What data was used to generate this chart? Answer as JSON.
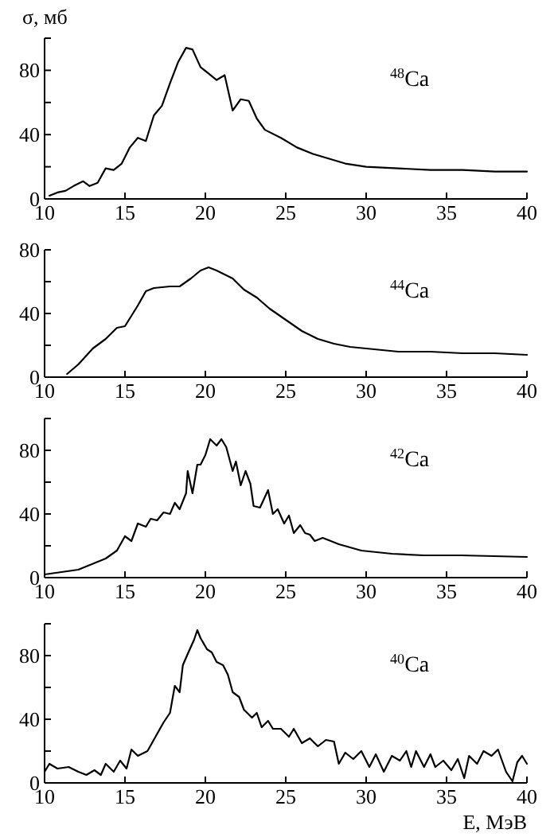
{
  "chart_data": [
    {
      "type": "line",
      "ylabel": "σ, мб",
      "annotations": [
        "$^{48}$Ca"
      ],
      "color": "#000000",
      "xlim": [
        10,
        40
      ],
      "xticks": [
        10,
        15,
        20,
        25,
        30,
        35,
        40
      ],
      "ylim": [
        0,
        100
      ],
      "yticks": [
        0,
        {
          "value": 20,
          "label": null
        },
        40,
        {
          "value": 60,
          "label": null
        },
        80,
        {
          "value": 100,
          "label": null
        }
      ],
      "x": [
        10.3,
        10.8,
        11.3,
        11.8,
        12.4,
        12.8,
        13.3,
        13.8,
        14.3,
        14.8,
        15.3,
        15.8,
        16.3,
        16.8,
        17.3,
        17.8,
        18.3,
        18.8,
        19.2,
        19.7,
        20.2,
        20.7,
        21.2,
        21.7,
        22.2,
        22.7,
        23.2,
        23.7,
        24.7,
        25.7,
        26.7,
        27.7,
        28.7,
        30,
        32,
        34,
        36,
        38,
        40
      ],
      "values": [
        2,
        4,
        5,
        8,
        11,
        8,
        10,
        19,
        18,
        22,
        32,
        38,
        36,
        52,
        58,
        72,
        85,
        94,
        93,
        82,
        78,
        74,
        77,
        55,
        62,
        61,
        50,
        43,
        38,
        32,
        28,
        25,
        22,
        20,
        19,
        18,
        18,
        17,
        17
      ]
    },
    {
      "type": "line",
      "annotations": [
        "$^{44}$Ca"
      ],
      "color": "#000000",
      "xlim": [
        10,
        40
      ],
      "xticks": [
        10,
        15,
        20,
        25,
        30,
        35,
        40
      ],
      "ylim": [
        0,
        80
      ],
      "yticks": [
        0,
        {
          "value": 20,
          "label": null
        },
        40,
        {
          "value": 60,
          "label": null
        },
        80
      ],
      "x": [
        11.4,
        12.1,
        13,
        13.8,
        14.5,
        15,
        15.8,
        16.3,
        16.8,
        17.8,
        18.4,
        19.1,
        19.7,
        20.2,
        20.7,
        21.7,
        22.4,
        23.2,
        24,
        25,
        26,
        27,
        28,
        29,
        30,
        32,
        34,
        36,
        38,
        40
      ],
      "values": [
        2,
        8,
        18,
        24,
        31,
        32,
        45,
        54,
        56,
        57,
        57,
        62,
        67,
        69,
        67,
        62,
        55,
        50,
        43,
        36,
        29,
        24,
        21,
        19,
        18,
        16,
        16,
        15,
        15,
        14
      ]
    },
    {
      "type": "line",
      "annotations": [
        "$^{42}$Ca"
      ],
      "color": "#000000",
      "xlim": [
        10,
        40
      ],
      "xticks": [
        10,
        15,
        20,
        25,
        30,
        35,
        40
      ],
      "ylim": [
        0,
        100
      ],
      "yticks": [
        0,
        {
          "value": 20,
          "label": null
        },
        40,
        {
          "value": 60,
          "label": null
        },
        80,
        {
          "value": 100,
          "label": null
        }
      ],
      "x": [
        10,
        12.1,
        13.8,
        14.5,
        15,
        15.4,
        15.8,
        16.3,
        16.6,
        17,
        17.4,
        17.8,
        18.1,
        18.4,
        18.8,
        18.9,
        19.2,
        19.5,
        19.7,
        20,
        20.3,
        20.7,
        21,
        21.3,
        21.7,
        21.9,
        22.2,
        22.5,
        22.8,
        23,
        23.4,
        23.9,
        24.2,
        24.5,
        24.9,
        25.2,
        25.5,
        25.9,
        26.2,
        26.5,
        26.8,
        27.3,
        28.3,
        29.7,
        31.6,
        33.6,
        35.9,
        40
      ],
      "values": [
        2,
        5,
        12,
        17,
        26,
        23,
        34,
        32,
        37,
        36,
        41,
        40,
        47,
        43,
        53,
        67,
        53,
        71,
        71,
        77,
        87,
        83,
        87,
        82,
        67,
        73,
        58,
        67,
        59,
        45,
        44,
        55,
        40,
        43,
        34,
        39,
        28,
        33,
        28,
        27,
        23,
        25,
        21,
        17,
        15,
        14,
        14,
        13
      ]
    },
    {
      "type": "line",
      "annotations": [
        "$^{40}$Ca"
      ],
      "xlabel": "E, МэВ",
      "color": "#000000",
      "xlim": [
        10,
        40
      ],
      "xticks": [
        10,
        15,
        20,
        25,
        30,
        35,
        40
      ],
      "ylim": [
        0,
        100
      ],
      "yticks": [
        0,
        {
          "value": 20,
          "label": null
        },
        40,
        {
          "value": 60,
          "label": null
        },
        80,
        {
          "value": 100,
          "label": null
        }
      ],
      "x": [
        10,
        10.3,
        10.8,
        11.5,
        12.1,
        12.6,
        13.1,
        13.5,
        13.8,
        14.3,
        14.7,
        15.1,
        15.4,
        15.8,
        16.4,
        16.9,
        17.4,
        17.8,
        18.1,
        18.4,
        18.6,
        18.9,
        19.3,
        19.5,
        19.7,
        20.1,
        20.4,
        20.7,
        21.1,
        21.4,
        21.7,
        22.1,
        22.4,
        22.9,
        23.2,
        23.5,
        23.9,
        24.2,
        24.7,
        25.2,
        25.5,
        26,
        26.5,
        27,
        27.5,
        28,
        28.3,
        28.7,
        29.2,
        29.7,
        30.2,
        30.6,
        31.1,
        31.6,
        32.1,
        32.5,
        32.8,
        33.1,
        33.6,
        34,
        34.3,
        34.8,
        35.3,
        35.7,
        36.1,
        36.4,
        36.9,
        37.3,
        37.8,
        38.2,
        38.7,
        39.1,
        39.4,
        39.7,
        40
      ],
      "values": [
        7,
        12,
        9,
        10,
        7,
        5,
        8,
        5,
        12,
        7,
        14,
        9,
        21,
        17,
        20,
        29,
        38,
        44,
        61,
        57,
        74,
        81,
        90,
        96,
        91,
        84,
        82,
        76,
        74,
        68,
        57,
        54,
        46,
        41,
        44,
        35,
        39,
        34,
        34,
        29,
        34,
        25,
        28,
        23,
        27,
        26,
        12,
        19,
        15,
        20,
        10,
        18,
        7,
        17,
        14,
        20,
        10,
        20,
        10,
        18,
        10,
        14,
        8,
        15,
        3,
        17,
        12,
        20,
        17,
        21,
        7,
        1,
        13,
        17,
        12
      ]
    }
  ]
}
